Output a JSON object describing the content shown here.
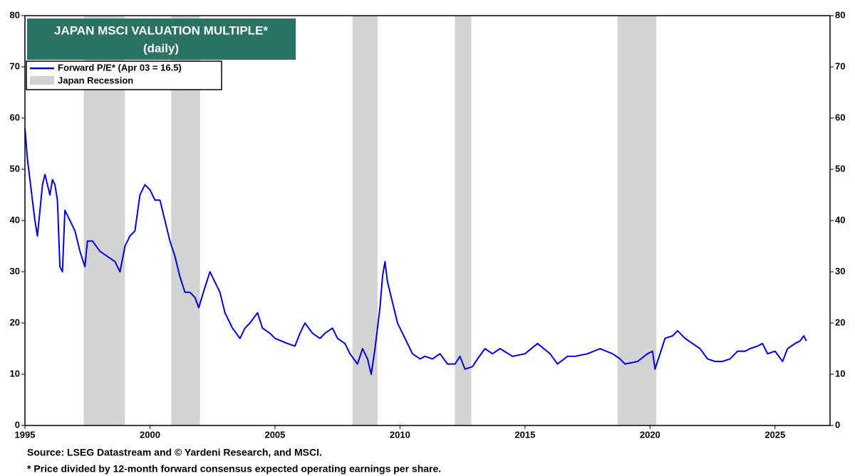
{
  "chart_data": {
    "type": "line",
    "title": "JAPAN MSCI VALUATION MULTIPLE*",
    "subtitle": "(daily)",
    "series": [
      {
        "name": "Forward P/E* (Apr 03 = 16.5)",
        "color": "#0000e6",
        "x": [
          1995.0,
          1995.1,
          1995.2,
          1995.3,
          1995.4,
          1995.5,
          1995.6,
          1995.7,
          1995.8,
          1995.9,
          1996.0,
          1996.1,
          1996.2,
          1996.3,
          1996.4,
          1996.5,
          1996.6,
          1996.8,
          1997.0,
          1997.2,
          1997.4,
          1997.5,
          1997.7,
          1998.0,
          1998.3,
          1998.6,
          1998.8,
          1999.0,
          1999.2,
          1999.4,
          1999.6,
          1999.8,
          2000.0,
          2000.2,
          2000.4,
          2000.6,
          2000.8,
          2001.0,
          2001.2,
          2001.4,
          2001.6,
          2001.8,
          2001.95,
          2002.2,
          2002.4,
          2002.6,
          2002.8,
          2003.0,
          2003.3,
          2003.6,
          2003.8,
          2004.0,
          2004.3,
          2004.5,
          2004.8,
          2005.0,
          2005.5,
          2005.8,
          2006.0,
          2006.2,
          2006.5,
          2006.8,
          2007.0,
          2007.3,
          2007.5,
          2007.8,
          2008.0,
          2008.3,
          2008.5,
          2008.7,
          2008.85,
          2009.0,
          2009.2,
          2009.3,
          2009.4,
          2009.5,
          2009.7,
          2009.9,
          2010.2,
          2010.5,
          2010.8,
          2011.0,
          2011.3,
          2011.6,
          2011.9,
          2012.2,
          2012.4,
          2012.6,
          2012.9,
          2013.1,
          2013.4,
          2013.7,
          2014.0,
          2014.5,
          2015.0,
          2015.5,
          2016.0,
          2016.3,
          2016.7,
          2017.0,
          2017.5,
          2018.0,
          2018.5,
          2018.8,
          2019.0,
          2019.5,
          2019.9,
          2020.1,
          2020.2,
          2020.4,
          2020.6,
          2020.9,
          2021.1,
          2021.4,
          2021.7,
          2022.0,
          2022.3,
          2022.6,
          2022.9,
          2023.2,
          2023.5,
          2023.8,
          2024.0,
          2024.3,
          2024.5,
          2024.7,
          2025.0,
          2025.3,
          2025.5,
          2025.8,
          2026.0,
          2026.15,
          2026.25
        ],
        "values": [
          58,
          52,
          48,
          44,
          40,
          37,
          42,
          47,
          49,
          47,
          45,
          48,
          47,
          44,
          31,
          30,
          42,
          40,
          38,
          34,
          31,
          36,
          36,
          34,
          33,
          32,
          30,
          35,
          37,
          38,
          45,
          47,
          46,
          44,
          44,
          40,
          36,
          33,
          29,
          26,
          26,
          25,
          23,
          27,
          30,
          28,
          26,
          22,
          19,
          17,
          19,
          20,
          22,
          19,
          18,
          17,
          16,
          15.5,
          18,
          20,
          18,
          17,
          18,
          19,
          17,
          16,
          14,
          12,
          15,
          13,
          10,
          15,
          23,
          29,
          32,
          28,
          24,
          20,
          17,
          14,
          13,
          13.5,
          13,
          14,
          12,
          12,
          13.5,
          11,
          11.5,
          13,
          15,
          14,
          15,
          13.5,
          14,
          16,
          14,
          12,
          13.5,
          13.5,
          14,
          15,
          14,
          13,
          12,
          12.5,
          14,
          14.5,
          11,
          14,
          17,
          17.5,
          18.5,
          17,
          16,
          15,
          13,
          12.5,
          12.5,
          13,
          14.5,
          14.5,
          15,
          15.5,
          16,
          14,
          14.5,
          12.5,
          15,
          16,
          16.5,
          17.5,
          16.5
        ]
      }
    ],
    "recession_label": "Japan Recession",
    "recession_color": "#d3d3d3",
    "recessions": [
      [
        1997.35,
        1999.0
      ],
      [
        2000.85,
        2002.0
      ],
      [
        2008.1,
        2009.1
      ],
      [
        2012.2,
        2012.85
      ],
      [
        2018.7,
        2020.25
      ]
    ],
    "xlim": [
      1995,
      2027.2
    ],
    "xticks": [
      1995,
      2000,
      2005,
      2010,
      2015,
      2020,
      2025
    ],
    "ylim": [
      0,
      80
    ],
    "yticks": [
      0,
      10,
      20,
      30,
      40,
      50,
      60,
      70,
      80
    ],
    "footnotes": [
      "Source: LSEG Datastream and © Yardeni Research, and MSCI.",
      "* Price divided by 12-month forward consensus expected operating earnings per share."
    ]
  }
}
